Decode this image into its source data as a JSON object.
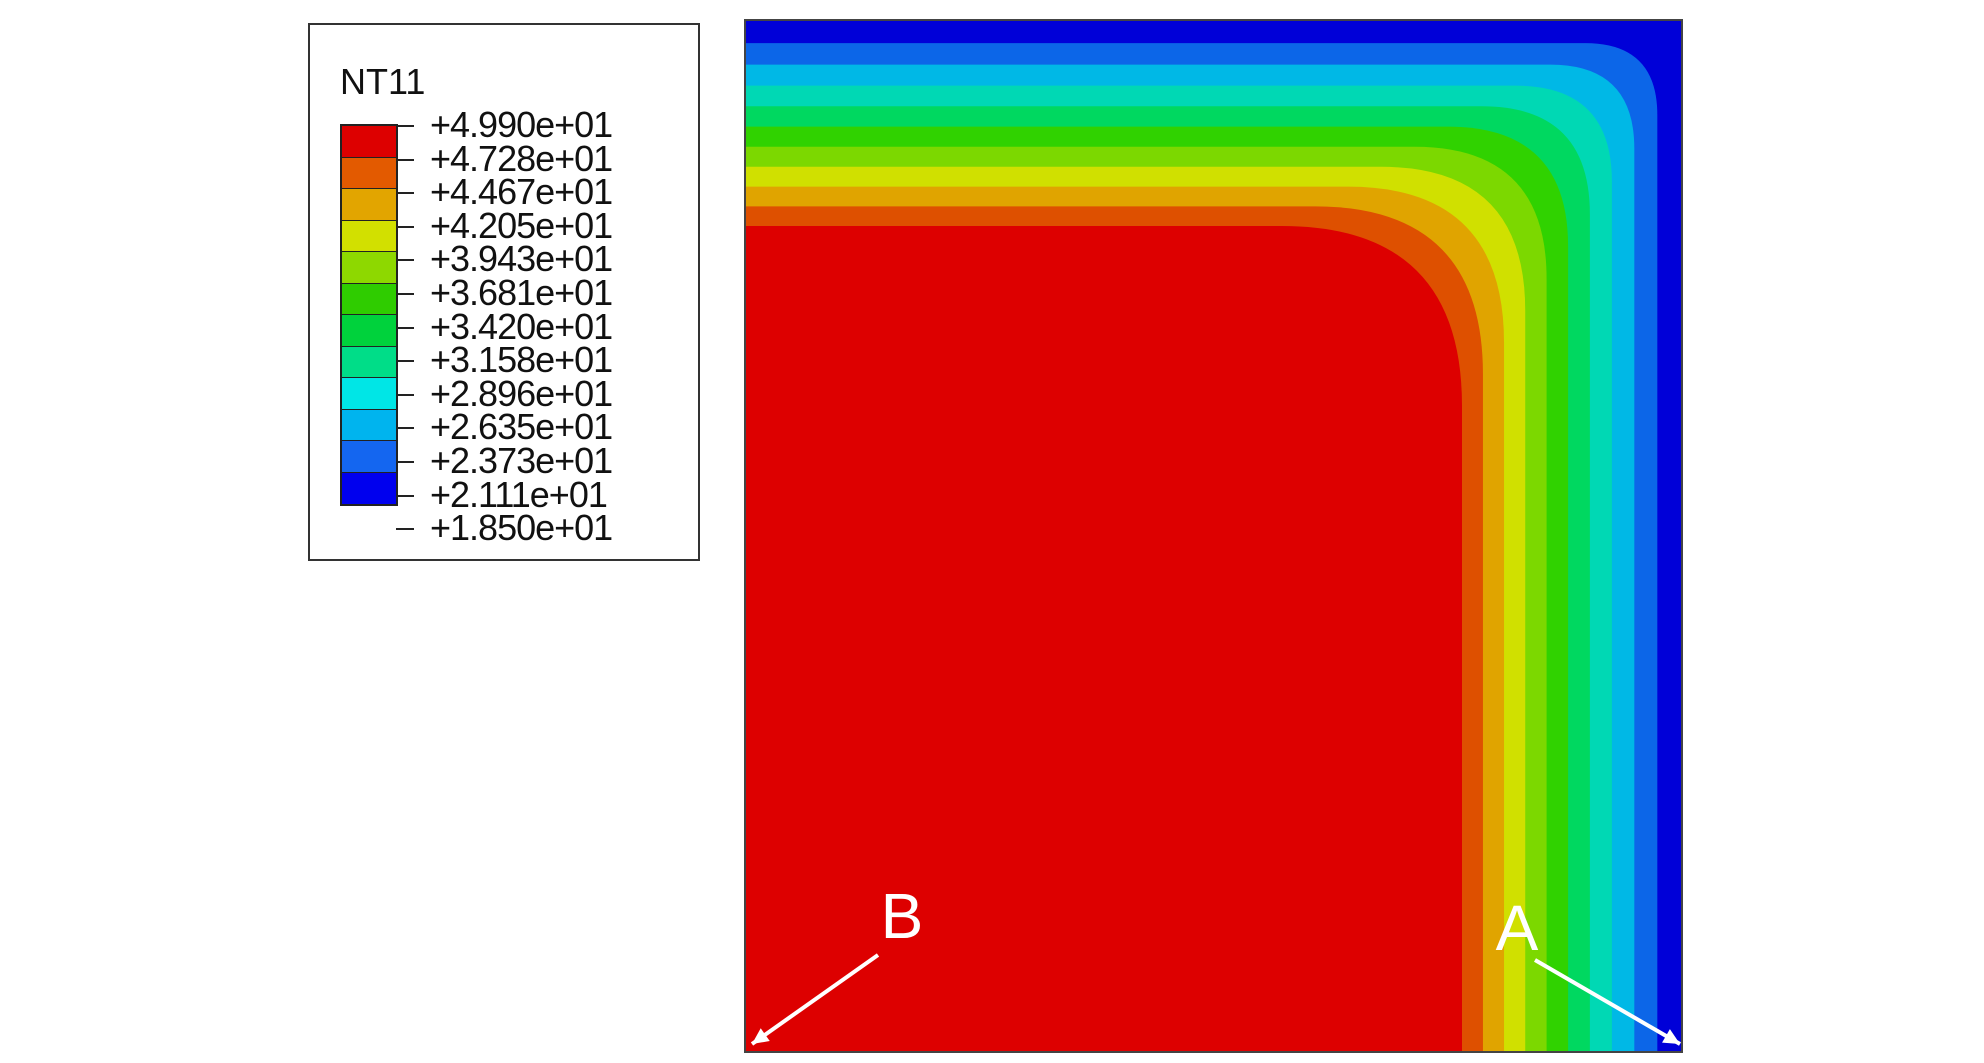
{
  "legend": {
    "title": "NT11",
    "values": [
      "+4.990e+01",
      "+4.728e+01",
      "+4.467e+01",
      "+4.205e+01",
      "+3.943e+01",
      "+3.681e+01",
      "+3.420e+01",
      "+3.158e+01",
      "+2.896e+01",
      "+2.635e+01",
      "+2.373e+01",
      "+2.111e+01",
      "+1.850e+01"
    ],
    "colors": [
      "#dd0000",
      "#e35a00",
      "#e2a500",
      "#d2e000",
      "#8ed800",
      "#2fcc00",
      "#00d23c",
      "#00dd88",
      "#00e6e6",
      "#00b4ee",
      "#1466f0",
      "#0000ee"
    ]
  },
  "contour": {
    "band_colors_outer_to_inner": [
      "#0000d8",
      "#0c66e8",
      "#00b8e6",
      "#00d8b4",
      "#00d860",
      "#30d200",
      "#7cd800",
      "#d0e000",
      "#e0a400",
      "#de5000",
      "#dd0000"
    ]
  },
  "markers": [
    {
      "label": "B"
    },
    {
      "label": "A"
    }
  ]
}
